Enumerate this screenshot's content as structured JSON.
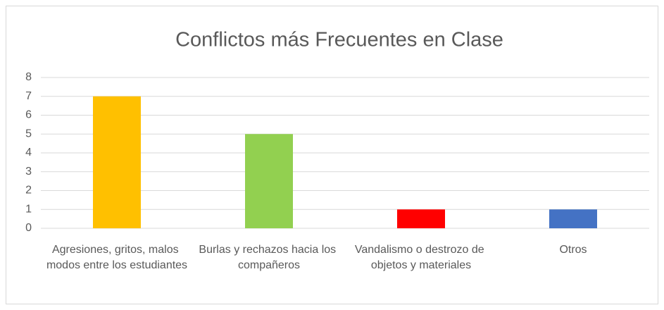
{
  "chart_data": {
    "type": "bar",
    "title": "Conflictos más Frecuentes en Clase",
    "categories": [
      "Agresiones, gritos, malos modos entre los estudiantes",
      "Burlas y rechazos hacia los compañeros",
      "Vandalismo o destrozo de objetos y materiales",
      "Otros"
    ],
    "values": [
      7,
      5,
      1,
      1
    ],
    "colors": [
      "#ffc000",
      "#92d050",
      "#ff0000",
      "#4472c4"
    ],
    "ylim": [
      0,
      8
    ],
    "yticks": [
      0,
      1,
      2,
      3,
      4,
      5,
      6,
      7,
      8
    ],
    "grid": true
  }
}
